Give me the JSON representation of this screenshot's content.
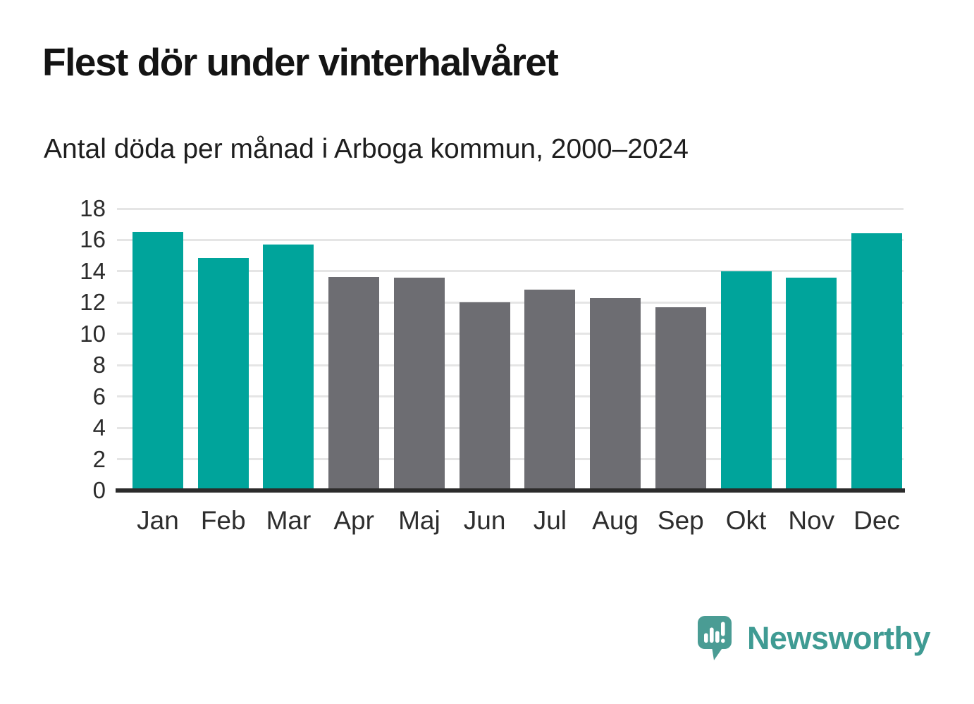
{
  "title": "Flest dör under vinterhalvåret",
  "subtitle": "Antal döda per månad i Arboga kommun, 2000–2024",
  "chart_data": {
    "type": "bar",
    "categories": [
      "Jan",
      "Feb",
      "Mar",
      "Apr",
      "Maj",
      "Jun",
      "Jul",
      "Aug",
      "Sep",
      "Okt",
      "Nov",
      "Dec"
    ],
    "values": [
      16.45,
      14.8,
      15.65,
      13.6,
      13.55,
      11.95,
      12.8,
      12.25,
      11.65,
      13.95,
      13.55,
      16.4
    ],
    "bar_color_keys": [
      "winter",
      "winter",
      "winter",
      "summer",
      "summer",
      "summer",
      "summer",
      "summer",
      "summer",
      "winter",
      "winter",
      "winter"
    ],
    "colors": {
      "winter": "#00a49b",
      "summer": "#6d6d72"
    },
    "title": "Flest dör under vinterhalvåret",
    "subtitle": "Antal döda per månad i Arboga kommun, 2000–2024",
    "xlabel": "",
    "ylabel": "",
    "ylim": [
      0,
      18
    ],
    "ytick_step": 2,
    "grid": true,
    "gridline_color": "#e5e5e5",
    "axis_color": "#2b2b2b",
    "legend_position": "none"
  },
  "branding": {
    "logo_text": "Newsworthy",
    "logo_text_color": "#3f9b93",
    "logo_mark_color": "#4a9c94",
    "logo_mark_icon": "speech-bubble-bar-chart-exclamation"
  }
}
